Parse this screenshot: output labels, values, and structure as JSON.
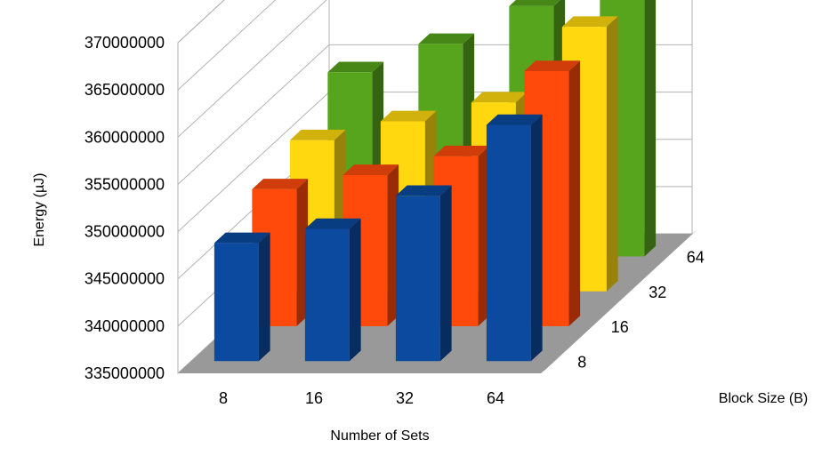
{
  "chart_data": {
    "type": "bar",
    "subtype": "3d-clustered-depth",
    "title": "",
    "xlabel": "Number of Sets",
    "ylabel": "Energy (µJ)",
    "zlabel": "Block Size (B)",
    "categories": [
      "8",
      "16",
      "32",
      "64"
    ],
    "y_ticks": [
      "335000000",
      "340000000",
      "345000000",
      "350000000",
      "355000000",
      "360000000",
      "365000000",
      "370000000"
    ],
    "ylim": [
      335000000,
      370000000
    ],
    "grid": true,
    "series": [
      {
        "name": "8",
        "color": "#0b4a9e",
        "values": [
          347500000,
          349000000,
          352500000,
          360000000
        ]
      },
      {
        "name": "16",
        "color": "#ff4a0c",
        "values": [
          349500000,
          351000000,
          353000000,
          362000000
        ]
      },
      {
        "name": "32",
        "color": "#ffd80f",
        "values": [
          351000000,
          353000000,
          355000000,
          363000000
        ]
      },
      {
        "name": "64",
        "color": "#56a51d",
        "values": [
          354500000,
          357500000,
          361500000,
          372000000
        ]
      }
    ]
  }
}
